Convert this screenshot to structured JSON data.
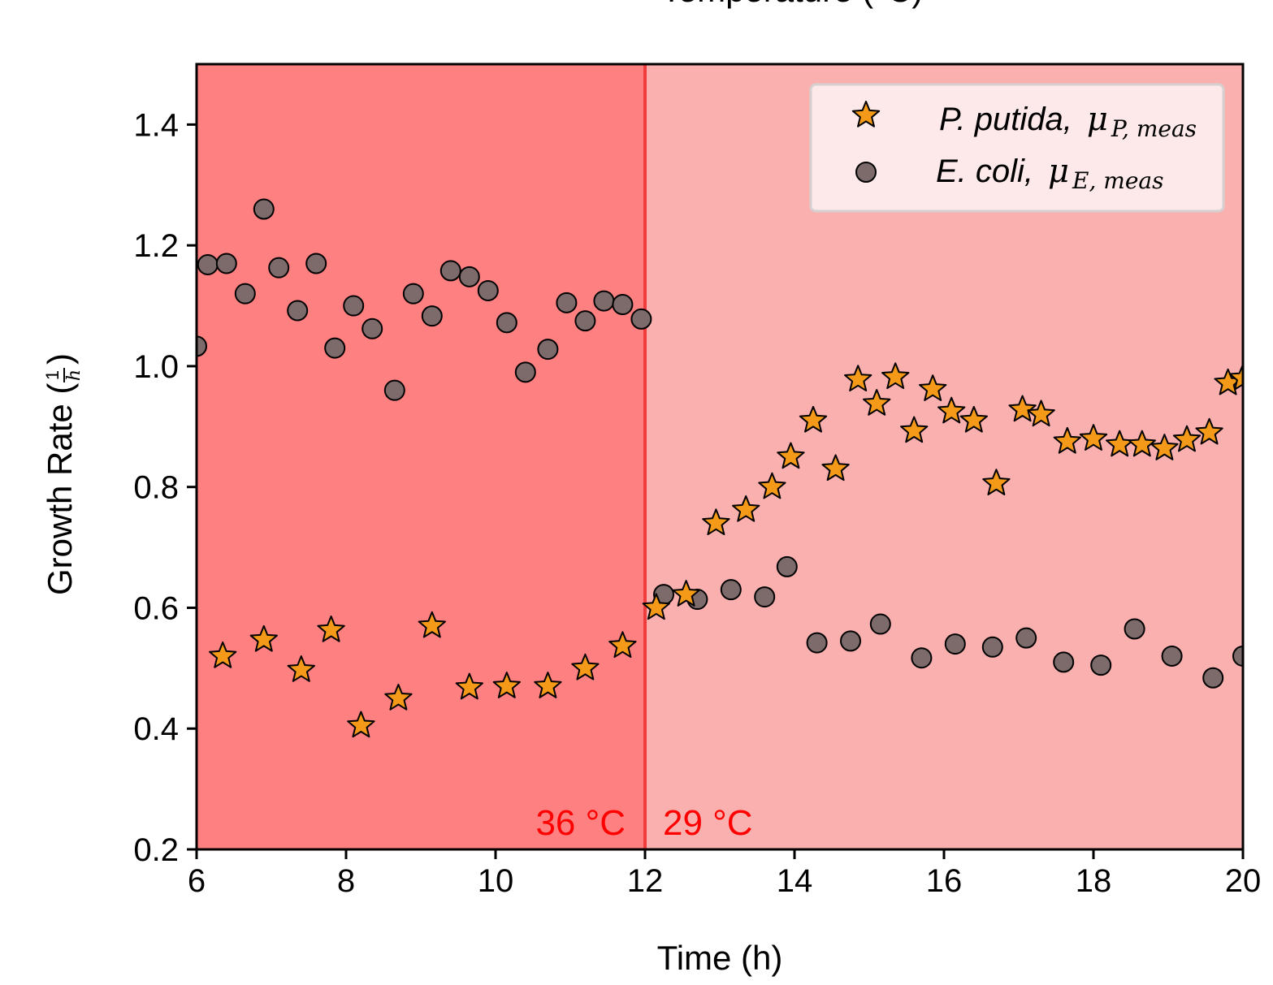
{
  "chart_data": {
    "type": "scatter",
    "top_label": "Temperature (°C)",
    "xlabel": "Time (h)",
    "ylabel": "Growth Rate (",
    "ylabel_fraction": {
      "numerator": "1",
      "denominator": "h"
    },
    "ylabel_close": ")",
    "xlim": [
      6,
      20
    ],
    "ylim": [
      0.2,
      1.5
    ],
    "x_ticks": [
      6,
      8,
      10,
      12,
      14,
      16,
      18,
      20
    ],
    "x_tick_labels": [
      "6",
      "8",
      "10",
      "12",
      "14",
      "16",
      "18",
      "20"
    ],
    "y_ticks": [
      0.2,
      0.4,
      0.6,
      0.8,
      1.0,
      1.2,
      1.4
    ],
    "y_tick_labels": [
      "0.2",
      "0.4",
      "0.6",
      "0.8",
      "1.0",
      "1.2",
      "1.4"
    ],
    "grid": false,
    "legend_position": "top-right",
    "regions": [
      {
        "x_start": 6,
        "x_end": 12,
        "label": "36 °C",
        "color": "#ff8080"
      },
      {
        "x_start": 12,
        "x_end": 20,
        "label": "29 °C",
        "color": "#fbb0b0"
      }
    ],
    "switch_line": {
      "x": 12,
      "color": "#f03c3c"
    },
    "series": [
      {
        "name": "P. putida,",
        "symbol": "μ",
        "subscript": "P, meas",
        "marker": "star",
        "color": "#f59a18",
        "points": [
          [
            6.35,
            0.52
          ],
          [
            6.9,
            0.547
          ],
          [
            7.4,
            0.497
          ],
          [
            7.8,
            0.563
          ],
          [
            8.2,
            0.405
          ],
          [
            8.7,
            0.45
          ],
          [
            9.15,
            0.57
          ],
          [
            9.65,
            0.468
          ],
          [
            10.15,
            0.47
          ],
          [
            10.7,
            0.47
          ],
          [
            11.2,
            0.5
          ],
          [
            11.7,
            0.537
          ],
          [
            12.15,
            0.6
          ],
          [
            12.55,
            0.622
          ],
          [
            12.95,
            0.74
          ],
          [
            13.35,
            0.762
          ],
          [
            13.7,
            0.8
          ],
          [
            13.95,
            0.85
          ],
          [
            14.25,
            0.91
          ],
          [
            14.55,
            0.83
          ],
          [
            14.85,
            0.978
          ],
          [
            15.1,
            0.938
          ],
          [
            15.35,
            0.982
          ],
          [
            15.6,
            0.893
          ],
          [
            15.85,
            0.962
          ],
          [
            16.1,
            0.925
          ],
          [
            16.4,
            0.91
          ],
          [
            16.7,
            0.806
          ],
          [
            17.05,
            0.928
          ],
          [
            17.3,
            0.92
          ],
          [
            17.65,
            0.875
          ],
          [
            18.0,
            0.88
          ],
          [
            18.35,
            0.87
          ],
          [
            18.65,
            0.87
          ],
          [
            18.95,
            0.864
          ],
          [
            19.25,
            0.878
          ],
          [
            19.55,
            0.89
          ],
          [
            19.8,
            0.972
          ],
          [
            20.0,
            0.98
          ]
        ]
      },
      {
        "name": "E. coli,",
        "symbol": "μ",
        "subscript": "E, meas",
        "marker": "circle",
        "color": "#7d6b6b",
        "points": [
          [
            6.0,
            1.033
          ],
          [
            6.15,
            1.168
          ],
          [
            6.4,
            1.17
          ],
          [
            6.65,
            1.12
          ],
          [
            6.9,
            1.26
          ],
          [
            7.1,
            1.163
          ],
          [
            7.35,
            1.092
          ],
          [
            7.6,
            1.17
          ],
          [
            7.85,
            1.03
          ],
          [
            8.1,
            1.1
          ],
          [
            8.35,
            1.062
          ],
          [
            8.65,
            0.96
          ],
          [
            8.9,
            1.12
          ],
          [
            9.15,
            1.083
          ],
          [
            9.4,
            1.158
          ],
          [
            9.65,
            1.148
          ],
          [
            9.9,
            1.125
          ],
          [
            10.15,
            1.072
          ],
          [
            10.4,
            0.99
          ],
          [
            10.7,
            1.028
          ],
          [
            10.95,
            1.105
          ],
          [
            11.2,
            1.075
          ],
          [
            11.45,
            1.108
          ],
          [
            11.7,
            1.102
          ],
          [
            11.95,
            1.078
          ],
          [
            12.25,
            0.622
          ],
          [
            12.7,
            0.614
          ],
          [
            13.15,
            0.63
          ],
          [
            13.6,
            0.618
          ],
          [
            13.9,
            0.668
          ],
          [
            14.3,
            0.542
          ],
          [
            14.75,
            0.545
          ],
          [
            15.15,
            0.573
          ],
          [
            15.7,
            0.517
          ],
          [
            16.15,
            0.54
          ],
          [
            16.65,
            0.535
          ],
          [
            17.1,
            0.55
          ],
          [
            17.6,
            0.51
          ],
          [
            18.1,
            0.505
          ],
          [
            18.55,
            0.565
          ],
          [
            19.05,
            0.52
          ],
          [
            19.6,
            0.484
          ],
          [
            20.0,
            0.52
          ]
        ]
      }
    ]
  }
}
